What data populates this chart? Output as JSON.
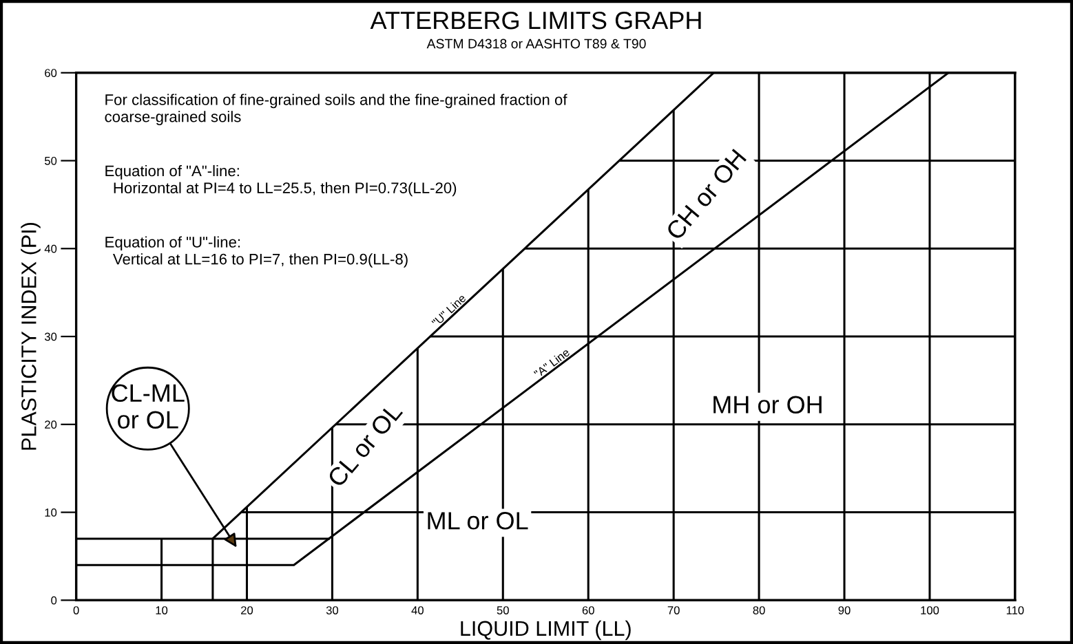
{
  "chart_data": {
    "type": "line",
    "title": "ATTERBERG LIMITS GRAPH",
    "subtitle": "ASTM D4318 or AASHTO T89 & T90",
    "xlabel": "LIQUID LIMIT (LL)",
    "ylabel": "PLASTICITY INDEX (PI)",
    "xlim": [
      0,
      110
    ],
    "ylim": [
      0,
      60
    ],
    "xticks": [
      0,
      10,
      20,
      30,
      40,
      50,
      60,
      70,
      80,
      90,
      100,
      110
    ],
    "yticks": [
      0,
      10,
      20,
      30,
      40,
      50,
      60
    ],
    "grid": true,
    "legend": false,
    "marker": "none",
    "line_style": "solid",
    "series": [
      {
        "name": "\"U\" Line",
        "color": "#000000",
        "x": [
          16,
          16,
          74.7
        ],
        "values": [
          0,
          7,
          60
        ]
      },
      {
        "name": "\"A\" Line",
        "color": "#000000",
        "x": [
          0,
          25.5,
          102.2
        ],
        "values": [
          4,
          4,
          60
        ]
      },
      {
        "color": "#000000",
        "x": [
          0,
          29.6
        ],
        "values": [
          7,
          7
        ]
      }
    ],
    "annotations": [
      "For classification of fine-grained soils and the fine-grained fraction of\ncoarse-grained soils",
      "Equation of \"A\"-line:\n  Horizontal at PI=4 to LL=25.5, then PI=0.73(LL-20)",
      "Equation of \"U\"-line:\n  Vertical at LL=16 to PI=7, then PI=0.9(LL-8)",
      "CL-ML\nor OL",
      "CL or OL",
      "CH or OH",
      "ML or OL",
      "MH or OH"
    ]
  }
}
